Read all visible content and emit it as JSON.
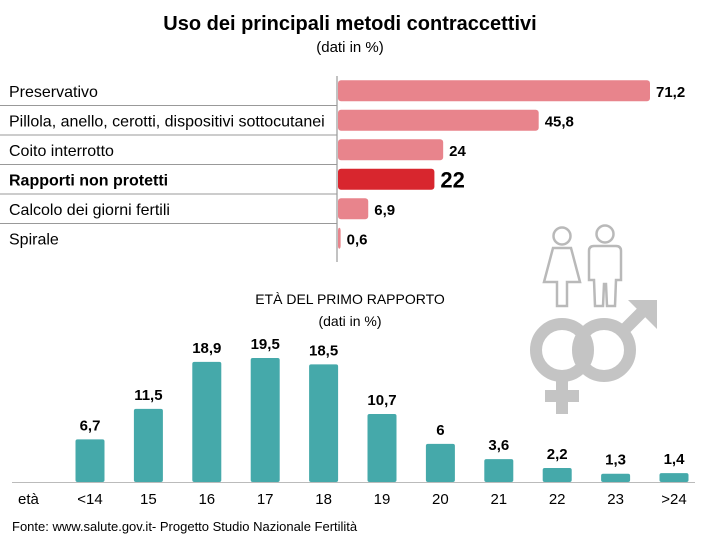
{
  "chart_data": [
    {
      "type": "bar",
      "orientation": "horizontal",
      "title": "Uso dei principali metodi contraccettivi",
      "subtitle": "(dati in %)",
      "categories": [
        "Preservativo",
        "Pillola, anello, cerotti, dispositivi sottocutanei",
        "Coito interrotto",
        "Rapporti non protetti",
        "Calcolo dei giorni fertili",
        "Spirale"
      ],
      "values": [
        71.2,
        45.8,
        24,
        22,
        6.9,
        0.6
      ],
      "value_labels": [
        "71,2",
        "45,8",
        "24",
        "22",
        "6,9",
        "0,6"
      ],
      "highlight": "Rapporti non protetti",
      "xlim": [
        0,
        75
      ],
      "colors": {
        "bar": "#e8848c",
        "highlight": "#d8262e"
      }
    },
    {
      "type": "bar",
      "orientation": "vertical",
      "title": "ETÀ DEL PRIMO RAPPORTO",
      "subtitle": "(dati in %)",
      "xlabel": "età",
      "categories": [
        "<14",
        "15",
        "16",
        "17",
        "18",
        "19",
        "20",
        "21",
        "22",
        "23",
        ">24"
      ],
      "values": [
        6.7,
        11.5,
        18.9,
        19.5,
        18.5,
        10.7,
        6,
        3.6,
        2.2,
        1.3,
        1.4
      ],
      "value_labels": [
        "6,7",
        "11,5",
        "18,9",
        "19,5",
        "18,5",
        "10,7",
        "6",
        "3,6",
        "2,2",
        "1,3",
        "1,4"
      ],
      "ylim": [
        0,
        20
      ],
      "colors": {
        "bar": "#45a9aa"
      }
    }
  ],
  "source": "Fonte: www.salute.gov.it-  Progetto Studio Nazionale Fertilità",
  "icon": "gender-symbols-icon",
  "colors": {
    "icon": "#c4c4c4",
    "divider": "#999999",
    "baseline": "#bbbbbb"
  }
}
